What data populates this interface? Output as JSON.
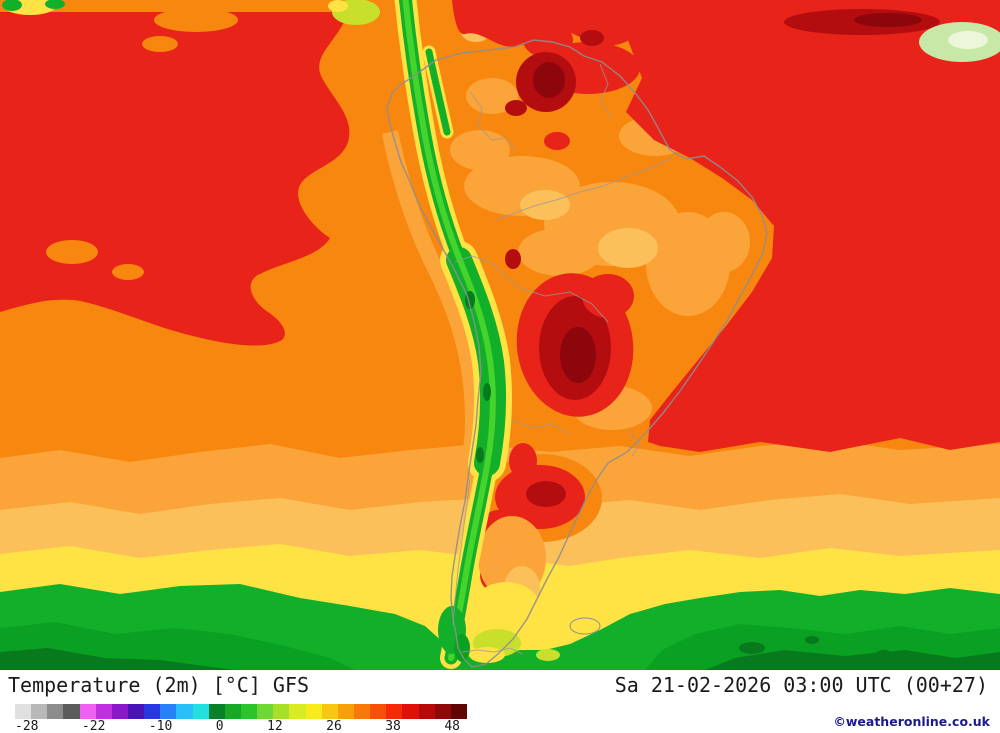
{
  "footer": {
    "title": "Temperature (2m) [°C] GFS",
    "timestamp": "Sa 21-02-2026 03:00 UTC (00+27)",
    "credit": "©weatheronline.co.uk"
  },
  "colorbar": {
    "ticks": [
      "-28",
      "-22",
      "-10",
      "0",
      "12",
      "26",
      "38",
      "48"
    ],
    "cells": [
      "#e0e0e0",
      "#b8b8b8",
      "#8c8c8c",
      "#5c5c5c",
      "#f060f0",
      "#c030e0",
      "#8818c8",
      "#4814b8",
      "#2838e0",
      "#2880f8",
      "#28c0f8",
      "#20e0e0",
      "#0a8028",
      "#18a828",
      "#2cc42c",
      "#70d834",
      "#a8e028",
      "#d8ec20",
      "#f8ec18",
      "#f8c810",
      "#f8a008",
      "#f87808",
      "#f85008",
      "#f82808",
      "#e01008",
      "#b80808",
      "#900808",
      "#600404"
    ]
  },
  "map": {
    "palette": {
      "main_orange": "#f8870f",
      "light_orange": "#fba43a",
      "amber": "#fcc05a",
      "yellow": "#ffe243",
      "yellow_green": "#c8e02c",
      "green": "#12b02a",
      "mid_green": "#0aa122",
      "dark_green": "#067a1c",
      "red": "#e8231a",
      "dark_red": "#b40d10",
      "darkest_red": "#8c060c",
      "border_gray": "#8e8e8e"
    }
  }
}
